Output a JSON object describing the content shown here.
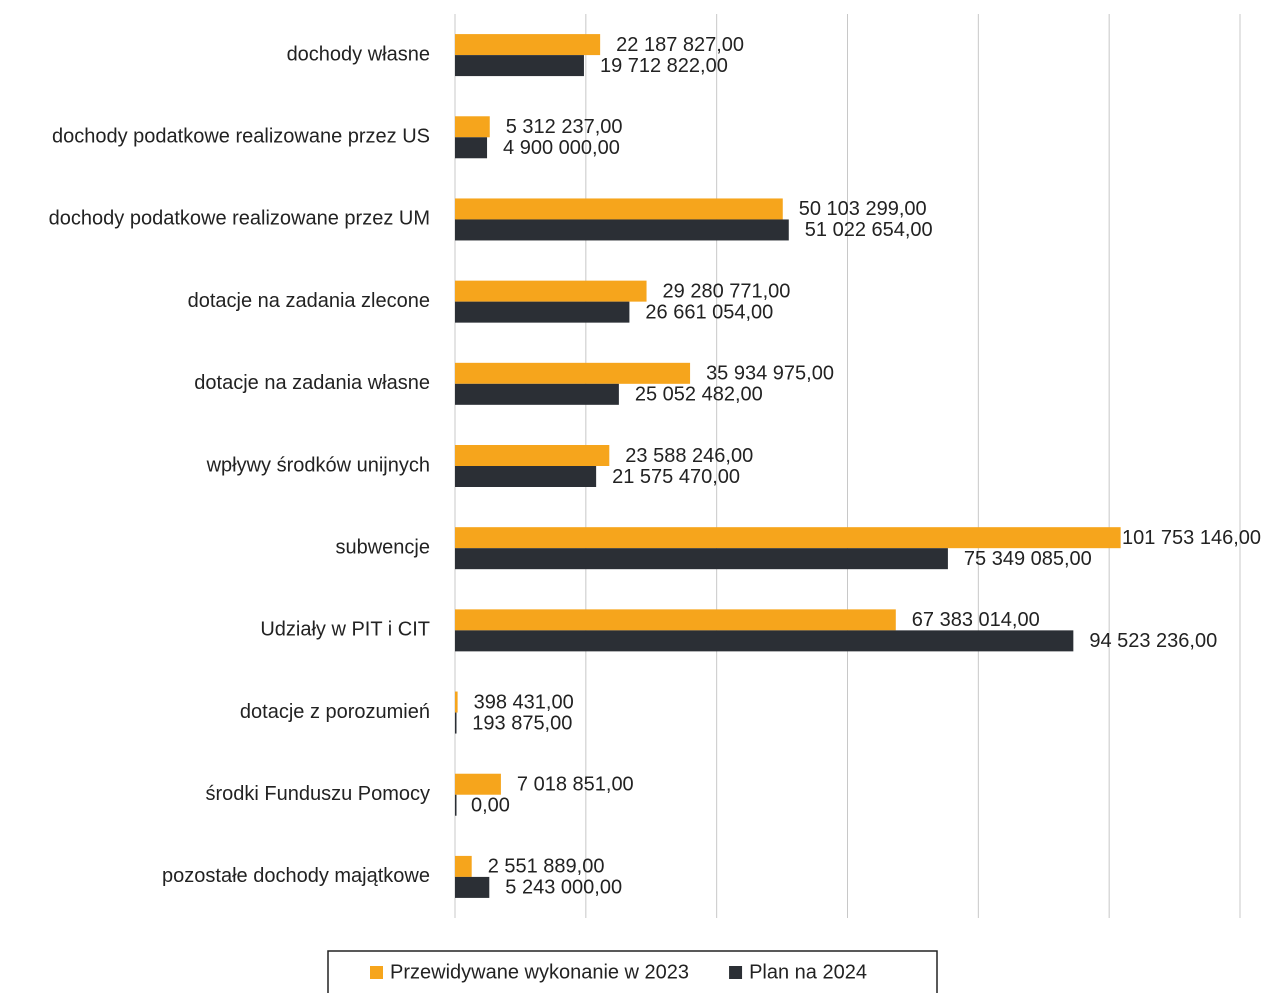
{
  "chart_data": {
    "type": "bar",
    "orientation": "horizontal",
    "categories": [
      "dochody własne",
      "dochody podatkowe realizowane przez US",
      "dochody podatkowe realizowane przez UM",
      "dotacje na zadania zlecone",
      "dotacje na zadania własne",
      "wpływy środków unijnych",
      "subwencje",
      "Udziały w PIT i CIT",
      "dotacje z porozumień",
      "środki Funduszu Pomocy",
      "pozostałe dochody majątkowe"
    ],
    "series": [
      {
        "name": "Przewidywane wykonanie w 2023",
        "color": "#f6a51c",
        "values": [
          22187827,
          5312237,
          50103299,
          29280771,
          35934975,
          23588246,
          101753146,
          67383014,
          398431,
          7018851,
          2551889
        ],
        "value_labels": [
          "22 187 827,00",
          "5 312 237,00",
          "50 103 299,00",
          "29 280 771,00",
          "35 934 975,00",
          "23 588 246,00",
          "101 753 146,00",
          "67 383 014,00",
          "398 431,00",
          "7 018 851,00",
          "2 551 889,00"
        ]
      },
      {
        "name": "Plan na 2024",
        "color": "#2b2f35",
        "values": [
          19712822,
          4900000,
          51022654,
          26661054,
          25052482,
          21575470,
          75349085,
          94523236,
          193875,
          0,
          5243000
        ],
        "value_labels": [
          "19 712 822,00",
          "4 900 000,00",
          "51 022 654,00",
          "26 661 054,00",
          "25 052 482,00",
          "21 575 470,00",
          "75 349 085,00",
          "94 523 236,00",
          "193 875,00",
          "0,00",
          "5 243 000,00"
        ]
      }
    ],
    "xlim": [
      0,
      120000000
    ],
    "xticks": [
      0,
      20000000,
      40000000,
      60000000,
      80000000,
      100000000,
      120000000
    ],
    "grid": true,
    "legend": "bottom"
  }
}
